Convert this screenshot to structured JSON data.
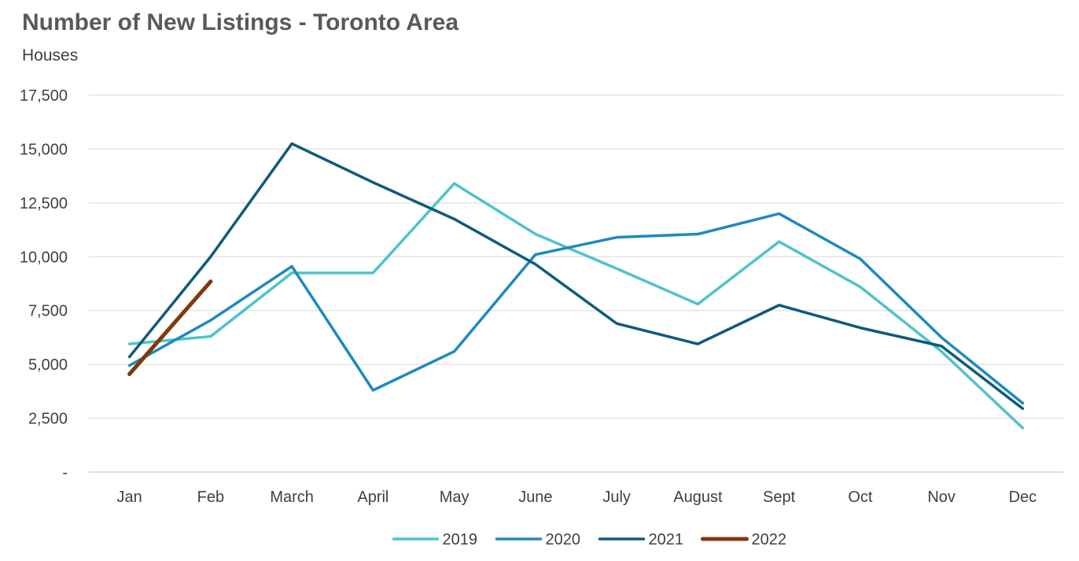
{
  "chart_data": {
    "type": "line",
    "title": "Number of New Listings - Toronto Area",
    "subtitle": "Houses",
    "xlabel": "",
    "ylabel": "",
    "categories": [
      "Jan",
      "Feb",
      "March",
      "April",
      "May",
      "June",
      "July",
      "August",
      "Sept",
      "Oct",
      "Nov",
      "Dec"
    ],
    "ylim": [
      0,
      17500
    ],
    "yticks": [
      0,
      2500,
      5000,
      7500,
      10000,
      12500,
      15000,
      17500
    ],
    "ytick_labels": [
      "-",
      "2,500",
      "5,000",
      "7,500",
      "10,000",
      "12,500",
      "15,000",
      "17,500"
    ],
    "grid": "horizontal",
    "legend_position": "bottom",
    "series": [
      {
        "name": "2019",
        "color": "#4fc3c9",
        "values": [
          5950,
          6300,
          9250,
          9250,
          13400,
          11050,
          9450,
          7800,
          10700,
          8600,
          5600,
          2050
        ]
      },
      {
        "name": "2020",
        "color": "#1f89bf",
        "values": [
          4950,
          7050,
          9550,
          3800,
          5600,
          10100,
          10900,
          11050,
          12000,
          9900,
          6250,
          3200
        ]
      },
      {
        "name": "2021",
        "color": "#0e5a7c",
        "values": [
          5350,
          10000,
          15250,
          13450,
          11750,
          9650,
          6900,
          5950,
          7750,
          6700,
          5850,
          2950
        ]
      },
      {
        "name": "2022",
        "color": "#7f3a0e",
        "values": [
          4550,
          8850,
          null,
          null,
          null,
          null,
          null,
          null,
          null,
          null,
          null,
          null
        ]
      }
    ]
  }
}
